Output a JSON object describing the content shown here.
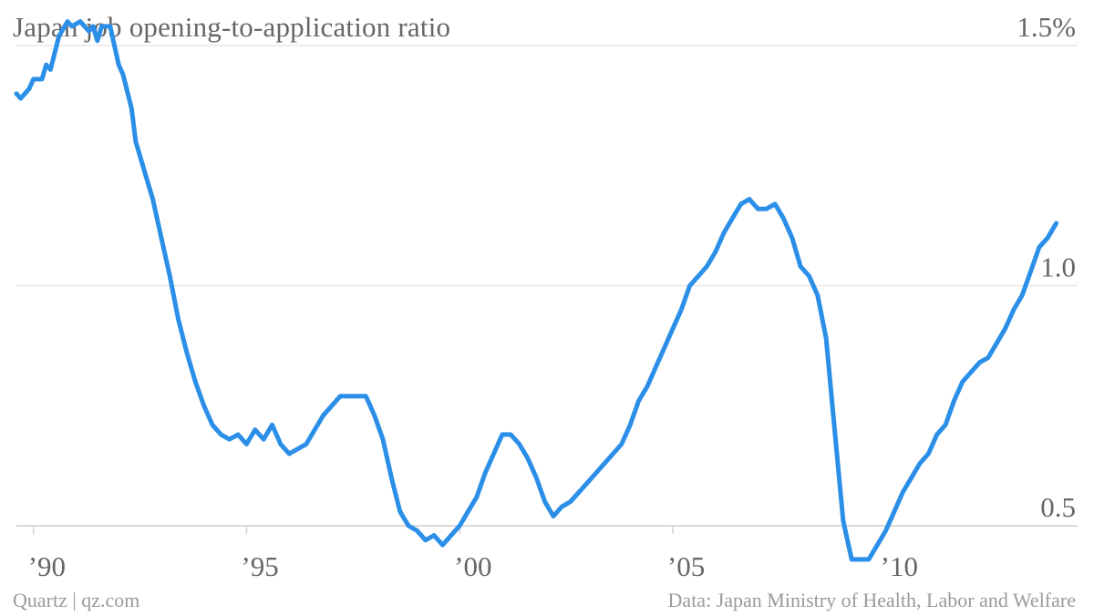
{
  "chart": {
    "title": "Japan job opening-to-application ratio",
    "source_left": "Quartz | qz.com",
    "source_right": "Data: Japan Ministry of Health, Labor and Welfare"
  },
  "chart_data": {
    "type": "line",
    "title": "Japan job opening-to-application ratio",
    "xlabel": "",
    "ylabel": "",
    "xlim": [
      1989.6,
      2014.5
    ],
    "ylim": [
      0.5,
      1.5
    ],
    "grid": true,
    "y_ticks": [
      {
        "value": 0.5,
        "label": "0.5"
      },
      {
        "value": 1.0,
        "label": "1.0"
      },
      {
        "value": 1.5,
        "label": "1.5%"
      }
    ],
    "x_ticks": [
      {
        "value": 1990,
        "label": "’90"
      },
      {
        "value": 1995,
        "label": "’95"
      },
      {
        "value": 2000,
        "label": "’00"
      },
      {
        "value": 2005,
        "label": "’05"
      },
      {
        "value": 2010,
        "label": "’10"
      }
    ],
    "series": [
      {
        "color": "#2b8fe8",
        "x": [
          1989.6,
          1989.7,
          1989.9,
          1990.0,
          1990.2,
          1990.3,
          1990.4,
          1990.6,
          1990.8,
          1990.9,
          1991.1,
          1991.3,
          1991.4,
          1991.5,
          1991.6,
          1991.8,
          1992.0,
          1992.1,
          1992.3,
          1992.4,
          1992.6,
          1992.8,
          1993.0,
          1993.2,
          1993.4,
          1993.6,
          1993.8,
          1994.0,
          1994.2,
          1994.4,
          1994.6,
          1994.8,
          1995.0,
          1995.2,
          1995.4,
          1995.6,
          1995.8,
          1996.0,
          1996.2,
          1996.4,
          1996.6,
          1996.8,
          1997.0,
          1997.2,
          1997.4,
          1997.6,
          1997.8,
          1998.0,
          1998.2,
          1998.4,
          1998.6,
          1998.8,
          1999.0,
          1999.2,
          1999.4,
          1999.6,
          1999.8,
          2000.0,
          2000.2,
          2000.4,
          2000.6,
          2000.8,
          2001.0,
          2001.2,
          2001.4,
          2001.6,
          2001.8,
          2002.0,
          2002.2,
          2002.4,
          2002.6,
          2002.8,
          2003.0,
          2003.2,
          2003.4,
          2003.6,
          2003.8,
          2004.0,
          2004.2,
          2004.4,
          2004.6,
          2004.8,
          2005.0,
          2005.2,
          2005.4,
          2005.6,
          2005.8,
          2006.0,
          2006.2,
          2006.4,
          2006.6,
          2006.8,
          2007.0,
          2007.2,
          2007.4,
          2007.6,
          2007.8,
          2008.0,
          2008.2,
          2008.4,
          2008.6,
          2008.8,
          2009.0,
          2009.2,
          2009.4,
          2009.6,
          2009.8,
          2010.0,
          2010.2,
          2010.4,
          2010.6,
          2010.8,
          2011.0,
          2011.2,
          2011.4,
          2011.6,
          2011.8,
          2012.0,
          2012.2,
          2012.4,
          2012.6,
          2012.8,
          2013.0,
          2013.2,
          2013.4,
          2013.6,
          2013.8,
          2014.0
        ],
        "values": [
          1.4,
          1.39,
          1.41,
          1.43,
          1.43,
          1.46,
          1.45,
          1.52,
          1.55,
          1.54,
          1.55,
          1.53,
          1.54,
          1.51,
          1.54,
          1.54,
          1.46,
          1.44,
          1.37,
          1.3,
          1.24,
          1.18,
          1.1,
          1.02,
          0.93,
          0.86,
          0.8,
          0.75,
          0.71,
          0.69,
          0.68,
          0.69,
          0.67,
          0.7,
          0.68,
          0.71,
          0.67,
          0.65,
          0.66,
          0.67,
          0.7,
          0.73,
          0.75,
          0.77,
          0.77,
          0.77,
          0.77,
          0.73,
          0.68,
          0.6,
          0.53,
          0.5,
          0.49,
          0.47,
          0.48,
          0.46,
          0.48,
          0.5,
          0.53,
          0.56,
          0.61,
          0.65,
          0.69,
          0.69,
          0.67,
          0.64,
          0.6,
          0.55,
          0.52,
          0.54,
          0.55,
          0.57,
          0.59,
          0.61,
          0.63,
          0.65,
          0.67,
          0.71,
          0.76,
          0.79,
          0.83,
          0.87,
          0.91,
          0.95,
          1.0,
          1.02,
          1.04,
          1.07,
          1.11,
          1.14,
          1.17,
          1.18,
          1.16,
          1.16,
          1.17,
          1.14,
          1.1,
          1.04,
          1.02,
          0.98,
          0.89,
          0.7,
          0.51,
          0.43,
          0.43,
          0.43,
          0.46,
          0.49,
          0.53,
          0.57,
          0.6,
          0.63,
          0.65,
          0.69,
          0.71,
          0.76,
          0.8,
          0.82,
          0.84,
          0.85,
          0.88,
          0.91,
          0.95,
          0.98,
          1.03,
          1.08,
          1.1,
          1.13
        ]
      }
    ]
  }
}
